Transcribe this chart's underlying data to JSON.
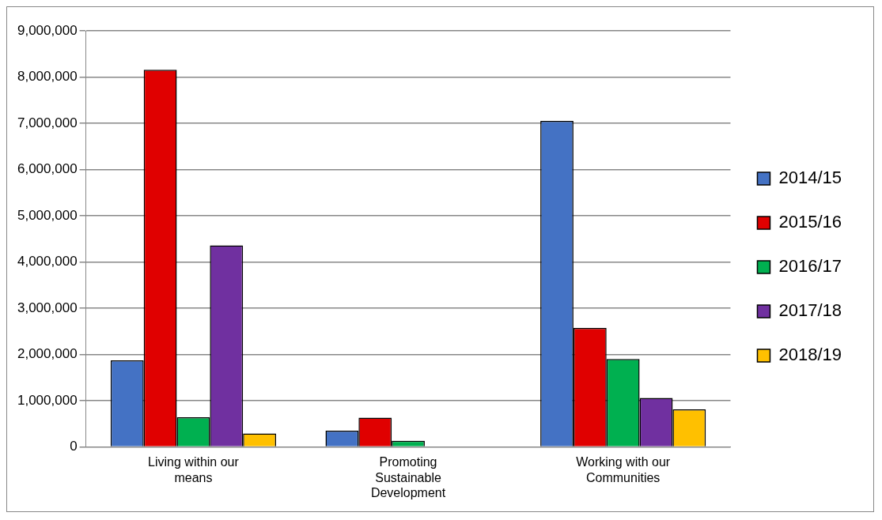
{
  "chart_data": {
    "type": "bar",
    "categories": [
      "Living within our means",
      "Promoting Sustainable Development",
      "Working with our Communities"
    ],
    "series": [
      {
        "name": "2014/15",
        "color": "#4472c4",
        "values": [
          1870000,
          350000,
          7050000
        ]
      },
      {
        "name": "2015/16",
        "color": "#e00000",
        "values": [
          8160000,
          630000,
          2570000
        ]
      },
      {
        "name": "2016/17",
        "color": "#00b050",
        "values": [
          640000,
          130000,
          1900000
        ]
      },
      {
        "name": "2017/18",
        "color": "#7030a0",
        "values": [
          4360000,
          null,
          1060000
        ]
      },
      {
        "name": "2018/19",
        "color": "#ffc000",
        "values": [
          290000,
          null,
          810000
        ]
      }
    ],
    "ylim": [
      0,
      9000000
    ],
    "yticks": [
      0,
      {
        "value": 1000000,
        "label": "1,000,000"
      },
      {
        "value": 2000000,
        "label": "2,000,000"
      },
      {
        "value": 3000000,
        "label": "3,000,000"
      },
      {
        "value": 4000000,
        "label": "4,000,000"
      },
      {
        "value": 5000000,
        "label": "5,000,000"
      },
      {
        "value": 6000000,
        "label": "6,000,000"
      },
      {
        "value": 7000000,
        "label": "7,000,000"
      },
      {
        "value": 8000000,
        "label": "8,000,000"
      },
      {
        "value": 9000000,
        "label": "9,000,000"
      }
    ],
    "grid": "y",
    "legend": "right"
  }
}
